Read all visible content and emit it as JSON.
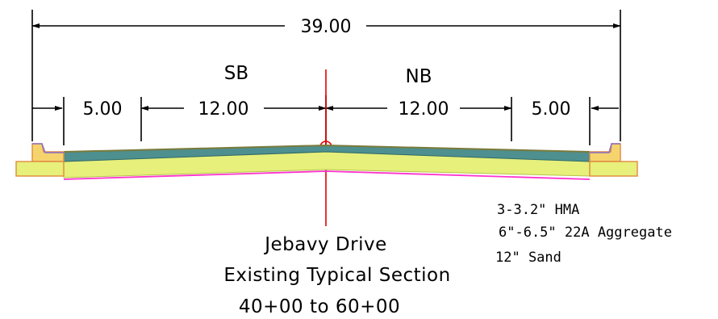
{
  "dimensions": {
    "overall": "39.00",
    "left_shoulder": "5.00",
    "sb_lane": "12.00",
    "nb_lane": "12.00",
    "right_shoulder": "5.00"
  },
  "lanes": {
    "southbound": "SB",
    "northbound": "NB"
  },
  "layers": [
    {
      "label": "3-3.2\" HMA",
      "color": "#4e8f8f"
    },
    {
      "label": "6\"-6.5\" 22A Aggregate",
      "color": "#e6f07a"
    },
    {
      "label": "12\" Sand",
      "color": "#ff33cc"
    }
  ],
  "title": {
    "line1": "Jebavy Drive",
    "line2": "Existing Typical Section",
    "line3": "40+00 to 60+00"
  },
  "colors": {
    "centerline": "#e00000",
    "curb_fill": "#f5d46e",
    "curb_edge": "#e08a40",
    "hma_top": "#7a7a3a",
    "hma": "#4e8f8f",
    "aggregate": "#e6f07a",
    "sand_line": "#ff33cc",
    "curb_top": "#8a70c8"
  }
}
